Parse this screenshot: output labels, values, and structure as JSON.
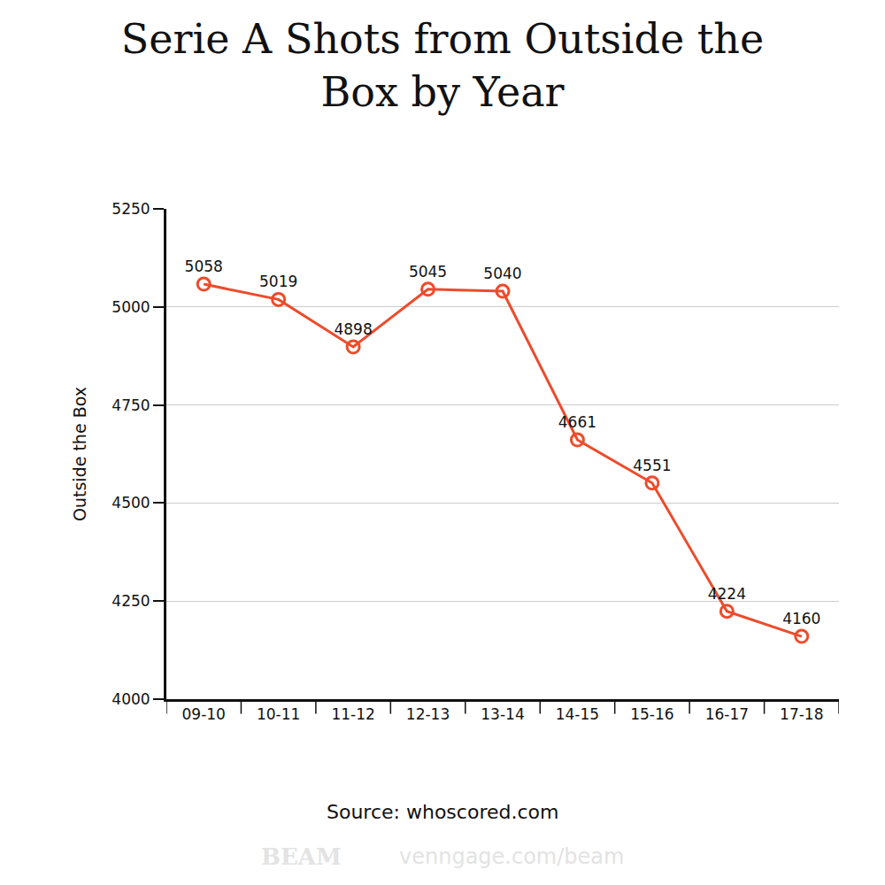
{
  "chart_data": {
    "type": "line",
    "title": "Serie A Shots from Outside the Box by Year",
    "y_label": "Outside the Box",
    "categories": [
      "09-10",
      "10-11",
      "11-12",
      "12-13",
      "13-14",
      "14-15",
      "15-16",
      "16-17",
      "17-18"
    ],
    "values": [
      5058,
      5019,
      4898,
      5045,
      5040,
      4661,
      4551,
      4224,
      4160
    ],
    "color": "#ee4b2b",
    "marker": "circle-open",
    "ylim": [
      4000,
      5250
    ],
    "yticks": [
      4000,
      4250,
      4500,
      4750,
      5000,
      5250
    ],
    "grid": true,
    "data_labels": true,
    "annotations": [
      "Source: whoscored.com",
      "BEAM",
      "venngage.com/beam"
    ]
  }
}
